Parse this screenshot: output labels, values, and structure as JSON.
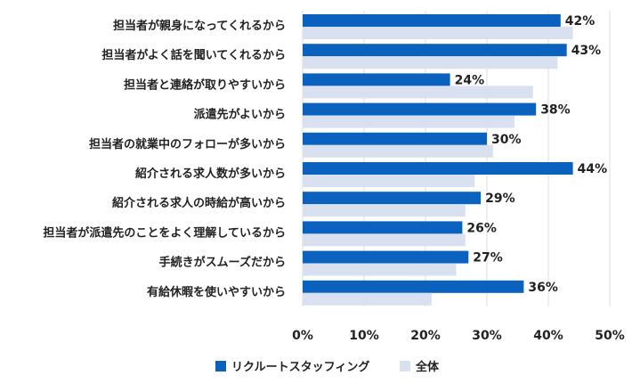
{
  "chart_data": {
    "type": "bar",
    "orientation": "horizontal",
    "categories": [
      "担当者が親身になってくれるから",
      "担当者がよく話を聞いてくれるから",
      "担当者と連絡が取りやすいから",
      "派遣先がよいから",
      "担当者の就業中のフォローが多いから",
      "紹介される求人数が多いから",
      "紹介される求人の時給が高いから",
      "担当者が派遣先のことをよく理解しているから",
      "手続きがスムーズだから",
      "有給休暇を使いやすいから"
    ],
    "series": [
      {
        "name": "リクルートスタッフィング",
        "color": "#0a62be",
        "values": [
          42,
          43,
          24,
          38,
          30,
          44,
          29,
          26,
          27,
          36
        ],
        "labels": [
          "42%",
          "43%",
          "24%",
          "38%",
          "30%",
          "44%",
          "29%",
          "26%",
          "27%",
          "36%"
        ]
      },
      {
        "name": "全体",
        "color": "#d9e1f1",
        "values": [
          44,
          41.5,
          37.5,
          34.5,
          31,
          28,
          26.5,
          26.5,
          25,
          21
        ]
      }
    ],
    "xlim": [
      0,
      50
    ],
    "xticks": [
      "0%",
      "10%",
      "20%",
      "30%",
      "40%",
      "50%"
    ],
    "grid": true,
    "legend": "bottom"
  }
}
